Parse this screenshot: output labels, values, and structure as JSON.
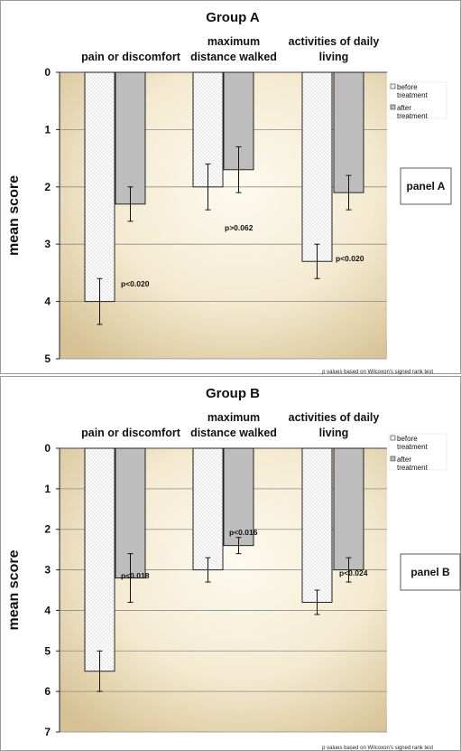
{
  "chart_data": [
    {
      "type": "bar",
      "title": "Group A",
      "ylabel": "mean score",
      "categories": [
        "pain or discomfort",
        "maximum distance walked",
        "activities of daily living"
      ],
      "category_lines": [
        [
          "pain or discomfort"
        ],
        [
          "maximum",
          "distance walked"
        ],
        [
          "activities of daily",
          "living"
        ]
      ],
      "series": [
        {
          "name": "before treatment",
          "values": [
            4.0,
            2.0,
            3.3
          ],
          "errors": [
            0.4,
            0.4,
            0.3
          ],
          "color": "#ffffff"
        },
        {
          "name": "after treatment",
          "values": [
            2.3,
            1.7,
            2.1
          ],
          "errors": [
            0.3,
            0.4,
            0.3
          ],
          "color": "#bdbdbd"
        }
      ],
      "legend_lines": [
        [
          "before",
          "treatment"
        ],
        [
          "after",
          "treatment"
        ]
      ],
      "ylim": [
        0,
        5
      ],
      "yaxis_inverted": true,
      "yticks": [
        "0",
        "1",
        "2",
        "3",
        "4",
        "5"
      ],
      "annotations": [
        "p<0.020",
        "p>0.062",
        "p<0.020"
      ],
      "panel_label": "panel A",
      "footnote": "p values based on Wilcoxon's  signed rank  test",
      "legend_position": "top-right",
      "grid": true
    },
    {
      "type": "bar",
      "title": "Group B",
      "ylabel": "mean score",
      "categories": [
        "pain or discomfort",
        "maximum distance walked",
        "activities of daily living"
      ],
      "category_lines": [
        [
          "pain or discomfort"
        ],
        [
          "maximum",
          "distance walked"
        ],
        [
          "activities of daily",
          "living"
        ]
      ],
      "series": [
        {
          "name": "before treatment",
          "values": [
            5.5,
            3.0,
            3.8
          ],
          "errors": [
            0.5,
            0.3,
            0.3
          ],
          "color": "#ffffff"
        },
        {
          "name": "after treatment",
          "values": [
            3.2,
            2.4,
            3.0
          ],
          "errors": [
            0.6,
            0.2,
            0.3
          ],
          "color": "#bdbdbd"
        }
      ],
      "legend_lines": [
        [
          "before",
          "treatment"
        ],
        [
          "after",
          "treatment"
        ]
      ],
      "ylim": [
        0,
        7
      ],
      "yaxis_inverted": true,
      "yticks": [
        "0",
        "1",
        "2",
        "3",
        "4",
        "5",
        "6",
        "7"
      ],
      "annotations": [
        "p<0.018",
        "p<0.016",
        "p<0.024"
      ],
      "panel_label": "panel B",
      "footnote": "p values based on Wilcoxon's  signed rank  test",
      "legend_position": "top-right",
      "grid": true
    }
  ]
}
